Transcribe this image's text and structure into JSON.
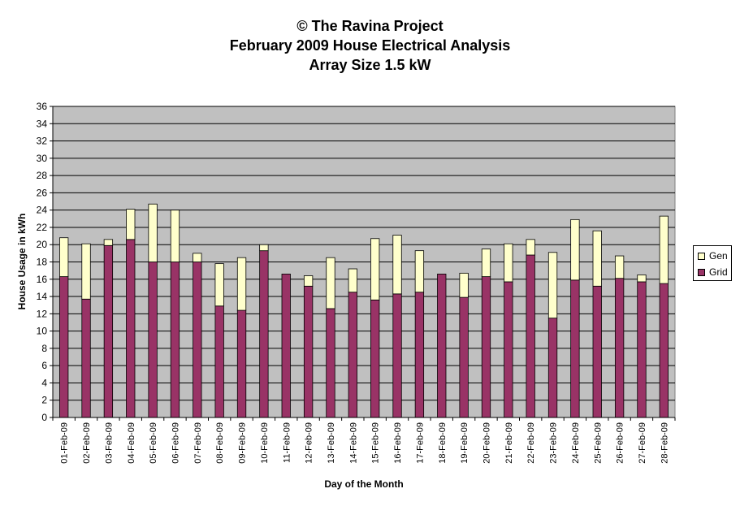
{
  "chart_data": {
    "type": "bar",
    "stacked": true,
    "title": "© The Ravina Project",
    "subtitle": [
      "February 2009 House Electrical Analysis",
      "Array Size 1.5 kW"
    ],
    "xlabel": "Day of the Month",
    "ylabel": "House Usage in kWh",
    "ylim": [
      0,
      36
    ],
    "yticks": [
      0,
      2,
      4,
      6,
      8,
      10,
      12,
      14,
      16,
      18,
      20,
      22,
      24,
      26,
      28,
      30,
      32,
      34,
      36
    ],
    "grid": true,
    "legend_position": "right",
    "categories": [
      "01-Feb-09",
      "02-Feb-09",
      "03-Feb-09",
      "04-Feb-09",
      "05-Feb-09",
      "06-Feb-09",
      "07-Feb-09",
      "08-Feb-09",
      "09-Feb-09",
      "10-Feb-09",
      "11-Feb-09",
      "12-Feb-09",
      "13-Feb-09",
      "14-Feb-09",
      "15-Feb-09",
      "16-Feb-09",
      "17-Feb-09",
      "18-Feb-09",
      "19-Feb-09",
      "20-Feb-09",
      "21-Feb-09",
      "22-Feb-09",
      "23-Feb-09",
      "24-Feb-09",
      "25-Feb-09",
      "26-Feb-09",
      "27-Feb-09",
      "28-Feb-09"
    ],
    "series": [
      {
        "name": "Grid",
        "color": "#993366",
        "values": [
          16.3,
          13.7,
          19.9,
          20.6,
          18.0,
          18.0,
          18.0,
          12.9,
          12.4,
          19.3,
          16.6,
          15.2,
          12.6,
          14.5,
          13.6,
          14.3,
          14.5,
          16.6,
          13.9,
          16.3,
          15.7,
          18.8,
          11.5,
          15.9,
          15.2,
          16.1,
          15.7,
          15.5
        ]
      },
      {
        "name": "Gen",
        "color": "#FFFFCC",
        "values": [
          4.5,
          6.4,
          0.7,
          3.5,
          6.7,
          6.0,
          1.0,
          4.9,
          6.1,
          0.7,
          0.0,
          1.2,
          5.9,
          2.7,
          7.1,
          6.8,
          4.8,
          0.0,
          2.8,
          3.2,
          4.4,
          1.8,
          7.6,
          7.0,
          6.4,
          2.6,
          0.8,
          7.8
        ]
      }
    ],
    "colors": {
      "plot_background": "#C0C0C0",
      "gridline": "#000000"
    }
  }
}
